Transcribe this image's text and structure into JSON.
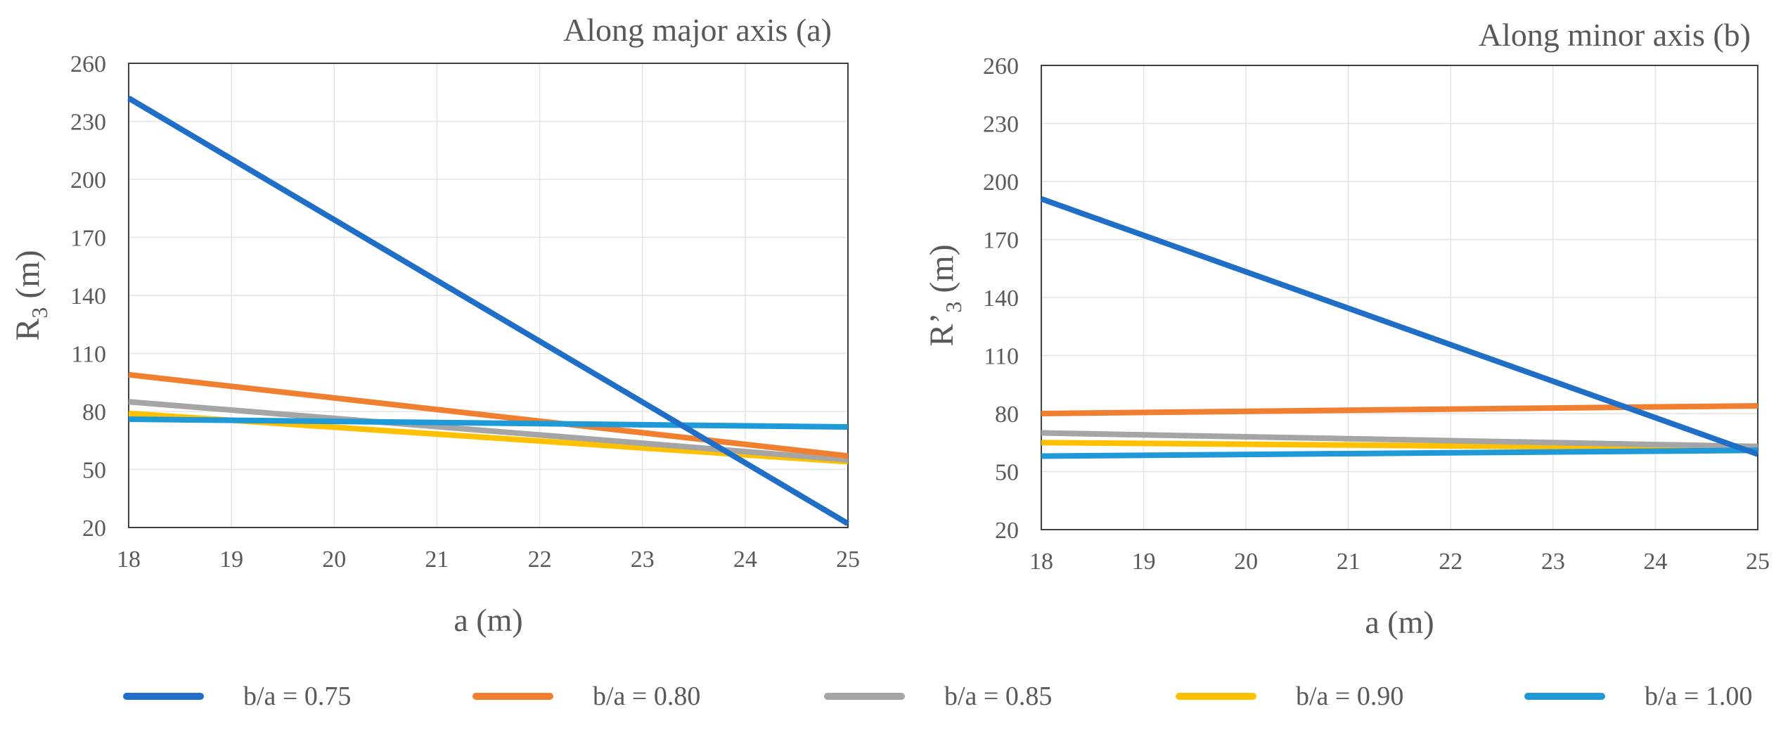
{
  "chart_data": [
    {
      "type": "line",
      "title": "Along major axis (a)",
      "xlabel": "a (m)",
      "ylabel_main": "R",
      "ylabel_sub": "3",
      "ylabel_tail": " (m)",
      "xlim": [
        18,
        25
      ],
      "ylim": [
        20,
        260
      ],
      "xticks": [
        18,
        19,
        20,
        21,
        22,
        23,
        24,
        25
      ],
      "yticks": [
        20,
        50,
        80,
        110,
        140,
        170,
        200,
        230,
        260
      ],
      "grid": true,
      "series": [
        {
          "name": "b/a = 0.75",
          "color": "#1F6FC9",
          "x": [
            18,
            25
          ],
          "y": [
            242,
            22
          ]
        },
        {
          "name": "b/a = 0.80",
          "color": "#F07F30",
          "x": [
            18,
            25
          ],
          "y": [
            99,
            57
          ]
        },
        {
          "name": "b/a = 0.85",
          "color": "#A5A5A5",
          "x": [
            18,
            25
          ],
          "y": [
            85,
            55
          ]
        },
        {
          "name": "b/a = 0.90",
          "color": "#FFC000",
          "x": [
            18,
            25
          ],
          "y": [
            79,
            54
          ]
        },
        {
          "name": "b/a = 1.00",
          "color": "#1E9AD8",
          "x": [
            18,
            25
          ],
          "y": [
            76,
            72
          ]
        }
      ]
    },
    {
      "type": "line",
      "title": "Along minor axis (b)",
      "xlabel": "a (m)",
      "ylabel_main": "R’",
      "ylabel_sub": "3",
      "ylabel_tail": " (m)",
      "xlim": [
        18,
        25
      ],
      "ylim": [
        20,
        260
      ],
      "xticks": [
        18,
        19,
        20,
        21,
        22,
        23,
        24,
        25
      ],
      "yticks": [
        20,
        50,
        80,
        110,
        140,
        170,
        200,
        230,
        260
      ],
      "grid": true,
      "series": [
        {
          "name": "b/a = 0.75",
          "color": "#1F6FC9",
          "x": [
            18,
            25
          ],
          "y": [
            191,
            59
          ]
        },
        {
          "name": "b/a = 0.80",
          "color": "#F07F30",
          "x": [
            18,
            25
          ],
          "y": [
            80,
            84
          ]
        },
        {
          "name": "b/a = 0.85",
          "color": "#A5A5A5",
          "x": [
            18,
            25
          ],
          "y": [
            70,
            63
          ]
        },
        {
          "name": "b/a = 0.90",
          "color": "#FFC000",
          "x": [
            18,
            25
          ],
          "y": [
            65,
            62
          ]
        },
        {
          "name": "b/a = 1.00",
          "color": "#1E9AD8",
          "x": [
            18,
            25
          ],
          "y": [
            58,
            61
          ]
        }
      ]
    }
  ],
  "legend": [
    {
      "label": "b/a = 0.75",
      "color": "#1F6FC9"
    },
    {
      "label": "b/a = 0.80",
      "color": "#F07F30"
    },
    {
      "label": "b/a = 0.85",
      "color": "#A5A5A5"
    },
    {
      "label": "b/a = 0.90",
      "color": "#FFC000"
    },
    {
      "label": "b/a = 1.00",
      "color": "#1E9AD8"
    }
  ]
}
